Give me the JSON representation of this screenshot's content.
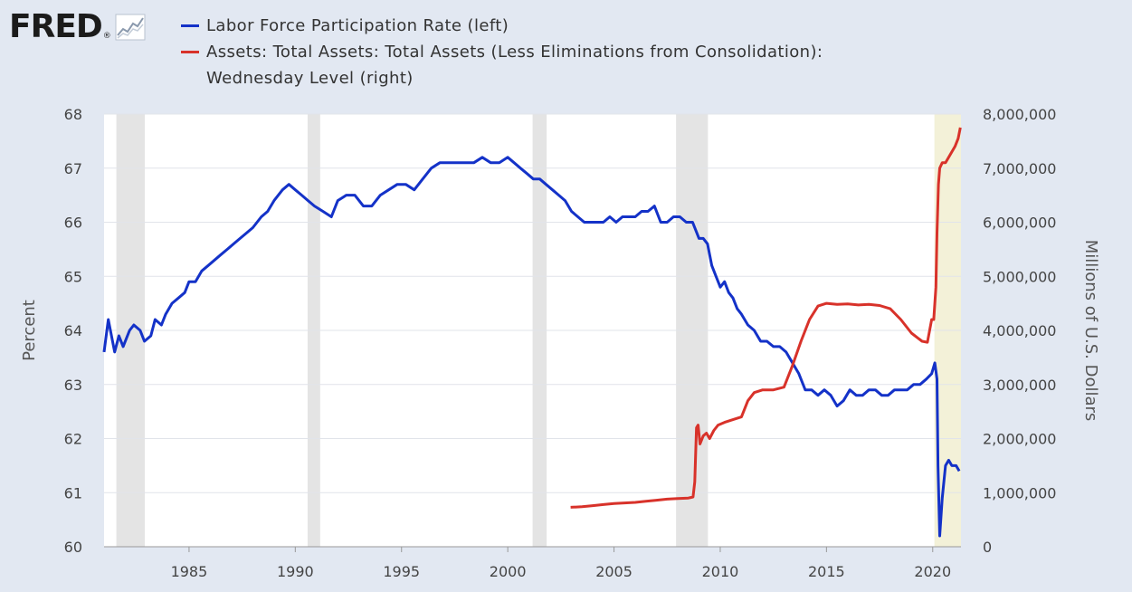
{
  "logo": {
    "text": "FRED",
    "reg": "®",
    "icon": "line-chart-icon"
  },
  "legend": [
    {
      "label": "Labor Force Participation Rate (left)",
      "color": "#1432c8"
    },
    {
      "label": "Assets: Total Assets: Total Assets (Less Eliminations from Consolidation):",
      "label2": "Wednesday Level (right)",
      "color": "#d8322a"
    }
  ],
  "chart_data": {
    "type": "line",
    "title": "",
    "xlabel": "",
    "ylabel": "Percent",
    "y2label": "Millions of U.S. Dollars",
    "xlim": [
      1981.0,
      2021.33
    ],
    "ylim": [
      60,
      68
    ],
    "y2lim": [
      0,
      8000000
    ],
    "x_ticks": [
      1985,
      1990,
      1995,
      2000,
      2005,
      2010,
      2015,
      2020
    ],
    "y_ticks": [
      60,
      61,
      62,
      63,
      64,
      65,
      66,
      67,
      68
    ],
    "y2_ticks": [
      0,
      1000000,
      2000000,
      3000000,
      4000000,
      5000000,
      6000000,
      7000000,
      8000000
    ],
    "y2_tick_labels": [
      "0",
      "1,000,000",
      "2,000,000",
      "3,000,000",
      "4,000,000",
      "5,000,000",
      "6,000,000",
      "7,000,000",
      "8,000,000"
    ],
    "recessions": [
      [
        1981.58,
        1982.92
      ],
      [
        1990.58,
        1991.17
      ],
      [
        2001.17,
        2001.83
      ],
      [
        2007.92,
        2009.42
      ],
      [
        2020.08,
        2021.33
      ]
    ],
    "series": [
      {
        "name": "Labor Force Participation Rate",
        "axis": "left",
        "color": "#1432c8",
        "x": [
          1981.0,
          1981.2,
          1981.5,
          1981.7,
          1981.9,
          1982.2,
          1982.4,
          1982.7,
          1982.9,
          1983.2,
          1983.4,
          1983.7,
          1983.9,
          1984.2,
          1984.5,
          1984.8,
          1985.0,
          1985.3,
          1985.6,
          1985.9,
          1986.2,
          1986.5,
          1986.8,
          1987.1,
          1987.4,
          1987.7,
          1988.0,
          1988.4,
          1988.7,
          1989.0,
          1989.4,
          1989.7,
          1990.0,
          1990.3,
          1990.6,
          1990.9,
          1991.3,
          1991.7,
          1992.0,
          1992.4,
          1992.8,
          1993.2,
          1993.6,
          1994.0,
          1994.4,
          1994.8,
          1995.2,
          1995.6,
          1996.0,
          1996.4,
          1996.8,
          1997.2,
          1997.6,
          1998.0,
          1998.4,
          1998.8,
          1999.2,
          1999.6,
          2000.0,
          2000.3,
          2000.6,
          2000.9,
          2001.2,
          2001.5,
          2001.8,
          2002.1,
          2002.4,
          2002.7,
          2003.0,
          2003.3,
          2003.6,
          2003.9,
          2004.2,
          2004.5,
          2004.8,
          2005.1,
          2005.4,
          2005.7,
          2006.0,
          2006.3,
          2006.6,
          2006.9,
          2007.2,
          2007.5,
          2007.8,
          2008.1,
          2008.4,
          2008.7,
          2009.0,
          2009.2,
          2009.4,
          2009.6,
          2009.8,
          2010.0,
          2010.2,
          2010.4,
          2010.6,
          2010.8,
          2011.0,
          2011.3,
          2011.6,
          2011.9,
          2012.2,
          2012.5,
          2012.8,
          2013.1,
          2013.4,
          2013.7,
          2014.0,
          2014.3,
          2014.6,
          2014.9,
          2015.2,
          2015.5,
          2015.8,
          2016.1,
          2016.4,
          2016.7,
          2017.0,
          2017.3,
          2017.6,
          2017.9,
          2018.2,
          2018.5,
          2018.8,
          2019.1,
          2019.4,
          2019.7,
          2019.95,
          2020.1,
          2020.2,
          2020.25,
          2020.33,
          2020.45,
          2020.6,
          2020.75,
          2020.9,
          2021.1,
          2021.25
        ],
        "y": [
          63.6,
          64.2,
          63.6,
          63.9,
          63.7,
          64.0,
          64.1,
          64.0,
          63.8,
          63.9,
          64.2,
          64.1,
          64.3,
          64.5,
          64.6,
          64.7,
          64.9,
          64.9,
          65.1,
          65.2,
          65.3,
          65.4,
          65.5,
          65.6,
          65.7,
          65.8,
          65.9,
          66.1,
          66.2,
          66.4,
          66.6,
          66.7,
          66.6,
          66.5,
          66.4,
          66.3,
          66.2,
          66.1,
          66.4,
          66.5,
          66.5,
          66.3,
          66.3,
          66.5,
          66.6,
          66.7,
          66.7,
          66.6,
          66.8,
          67.0,
          67.1,
          67.1,
          67.1,
          67.1,
          67.1,
          67.2,
          67.1,
          67.1,
          67.2,
          67.1,
          67.0,
          66.9,
          66.8,
          66.8,
          66.7,
          66.6,
          66.5,
          66.4,
          66.2,
          66.1,
          66.0,
          66.0,
          66.0,
          66.0,
          66.1,
          66.0,
          66.1,
          66.1,
          66.1,
          66.2,
          66.2,
          66.3,
          66.0,
          66.0,
          66.1,
          66.1,
          66.0,
          66.0,
          65.7,
          65.7,
          65.6,
          65.2,
          65.0,
          64.8,
          64.9,
          64.7,
          64.6,
          64.4,
          64.3,
          64.1,
          64.0,
          63.8,
          63.8,
          63.7,
          63.7,
          63.6,
          63.4,
          63.2,
          62.9,
          62.9,
          62.8,
          62.9,
          62.8,
          62.6,
          62.7,
          62.9,
          62.8,
          62.8,
          62.9,
          62.9,
          62.8,
          62.8,
          62.9,
          62.9,
          62.9,
          63.0,
          63.0,
          63.1,
          63.2,
          63.4,
          63.1,
          61.5,
          60.2,
          60.9,
          61.5,
          61.6,
          61.5,
          61.5,
          61.4
        ],
        "y_kind": "percent"
      },
      {
        "name": "Assets: Total Assets: Total Assets (Less Eliminations from Consolidation): Wednesday Level",
        "axis": "right",
        "color": "#d8322a",
        "x": [
          2002.96,
          2003.5,
          2004.0,
          2004.5,
          2005.0,
          2005.5,
          2006.0,
          2006.5,
          2007.0,
          2007.5,
          2008.0,
          2008.5,
          2008.72,
          2008.8,
          2008.88,
          2008.96,
          2009.05,
          2009.2,
          2009.35,
          2009.5,
          2009.7,
          2009.9,
          2010.2,
          2010.6,
          2011.0,
          2011.3,
          2011.6,
          2012.0,
          2012.5,
          2013.0,
          2013.4,
          2013.8,
          2014.2,
          2014.6,
          2015.0,
          2015.5,
          2016.0,
          2016.5,
          2017.0,
          2017.5,
          2018.0,
          2018.5,
          2019.0,
          2019.5,
          2019.75,
          2019.95,
          2020.05,
          2020.15,
          2020.2,
          2020.27,
          2020.33,
          2020.45,
          2020.6,
          2020.75,
          2020.9,
          2021.05,
          2021.2,
          2021.3
        ],
        "y": [
          730000,
          740000,
          760000,
          780000,
          800000,
          810000,
          820000,
          840000,
          860000,
          880000,
          890000,
          900000,
          920000,
          1200000,
          2200000,
          2250000,
          1900000,
          2050000,
          2100000,
          2000000,
          2150000,
          2250000,
          2300000,
          2350000,
          2400000,
          2700000,
          2850000,
          2900000,
          2900000,
          2950000,
          3350000,
          3800000,
          4200000,
          4450000,
          4500000,
          4480000,
          4490000,
          4470000,
          4480000,
          4460000,
          4400000,
          4200000,
          3950000,
          3800000,
          3780000,
          4200000,
          4200000,
          4800000,
          5800000,
          6700000,
          7000000,
          7100000,
          7100000,
          7200000,
          7300000,
          7400000,
          7550000,
          7750000
        ],
        "y_kind": "dollars"
      }
    ]
  }
}
